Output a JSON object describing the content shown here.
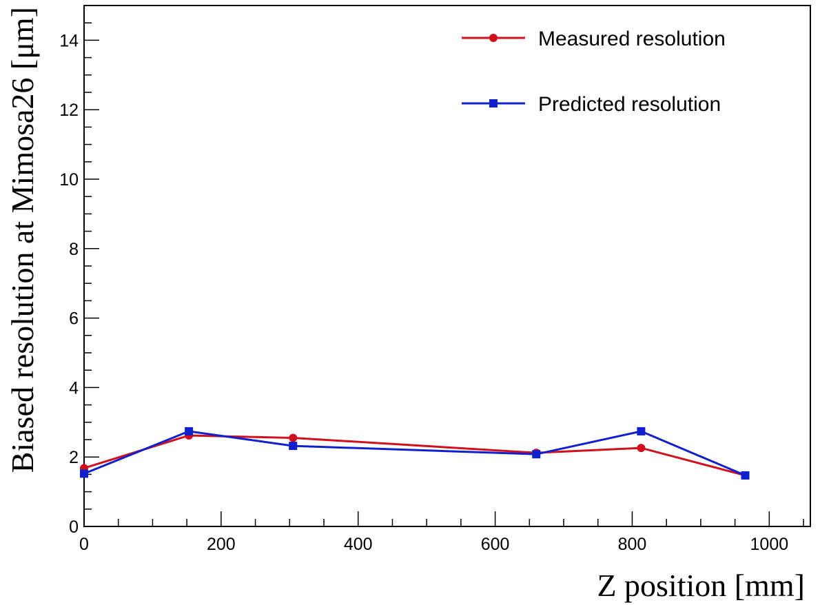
{
  "chart_data": {
    "type": "line",
    "title": "",
    "xlabel": "Z position [mm]",
    "ylabel": "Biased resolution at Mimosa26 [μm]",
    "xlim": [
      0,
      1060
    ],
    "ylim": [
      0,
      15
    ],
    "x_ticks": [
      "0",
      "200",
      "400",
      "600",
      "800",
      "1000"
    ],
    "y_ticks": [
      "0",
      "2",
      "4",
      "6",
      "8",
      "10",
      "12",
      "14"
    ],
    "grid": false,
    "legend_position": "top-right",
    "series": [
      {
        "name": "Measured resolution",
        "color": "#d0101c",
        "marker": "circle",
        "x": [
          0,
          153,
          305,
          660,
          813,
          965
        ],
        "y": [
          1.68,
          2.62,
          2.55,
          2.12,
          2.26,
          1.47
        ]
      },
      {
        "name": "Predicted resolution",
        "color": "#1020cc",
        "marker": "square",
        "x": [
          0,
          153,
          305,
          660,
          813,
          965
        ],
        "y": [
          1.52,
          2.74,
          2.32,
          2.08,
          2.74,
          1.47
        ]
      }
    ]
  }
}
